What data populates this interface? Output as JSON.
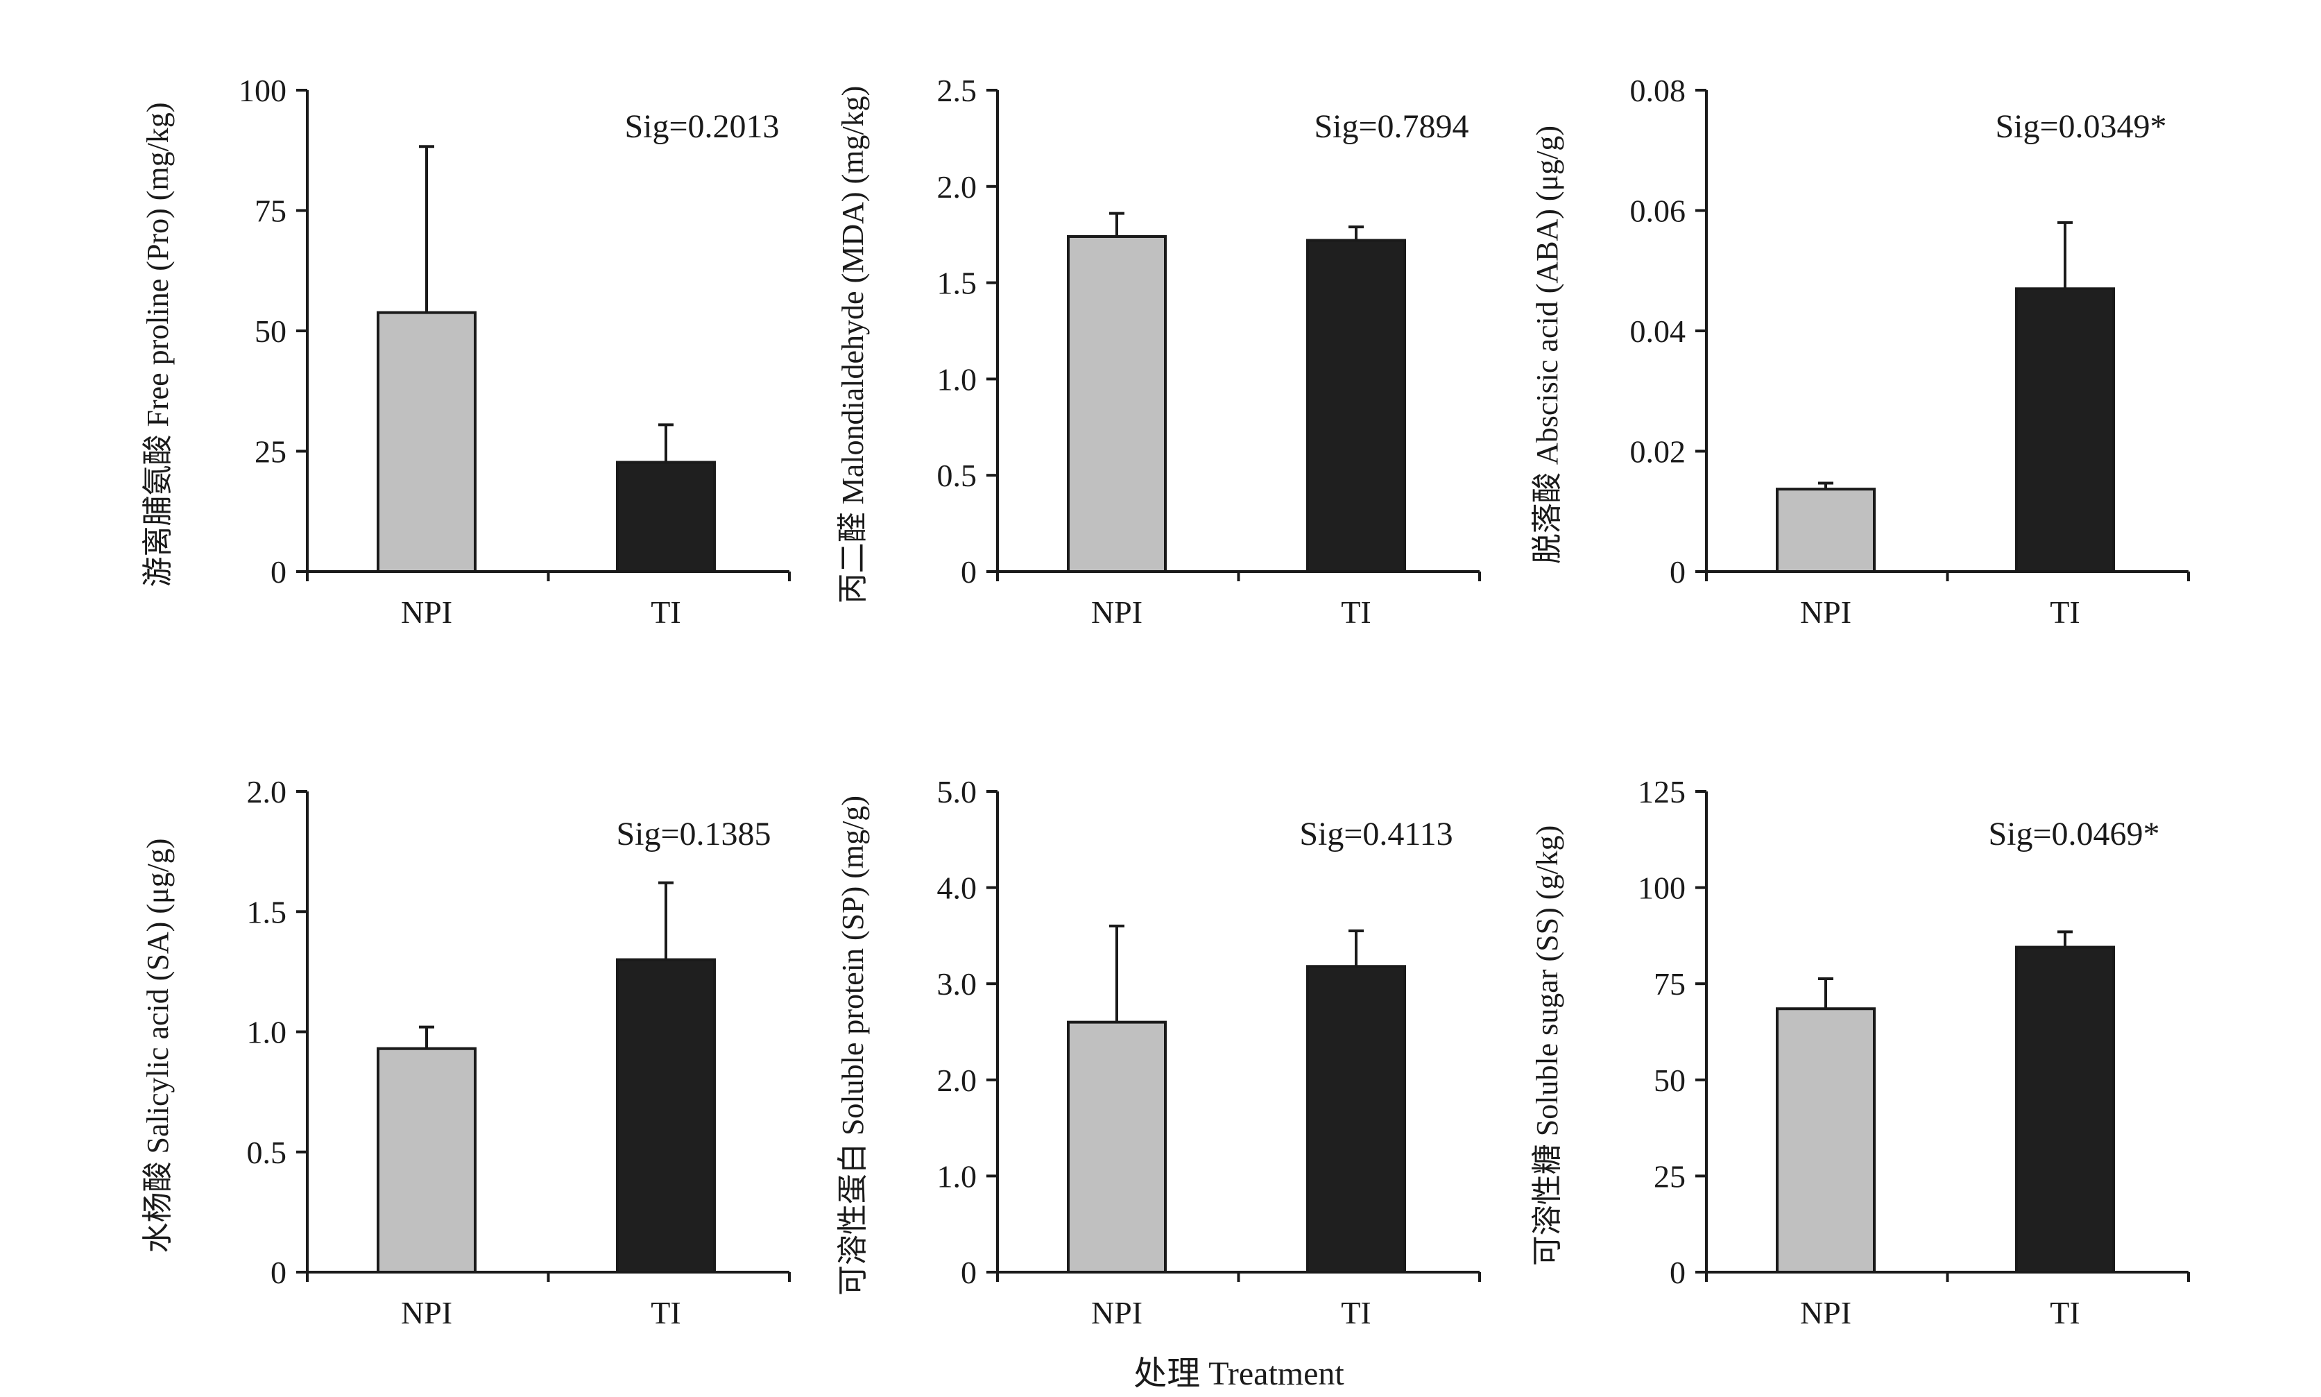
{
  "figure": {
    "x_title": "处理 Treatment"
  },
  "chart_data": [
    {
      "type": "bar",
      "categories": [
        "NPI",
        "TI"
      ],
      "values": [
        53.8,
        22.7
      ],
      "errors": [
        34.5,
        7.8
      ],
      "ylim": [
        0,
        100
      ],
      "yticks": [
        0,
        25,
        50,
        75,
        100
      ],
      "ytick_labels": [
        "0",
        "25",
        "50",
        "75",
        "100"
      ],
      "ylabel": "游离脯氨酸 Free proline (Pro) (mg/kg)",
      "annotation": "Sig=0.2013",
      "colors": [
        "#c0c0c0",
        "#1f1f1f"
      ]
    },
    {
      "type": "bar",
      "categories": [
        "NPI",
        "TI"
      ],
      "values": [
        1.74,
        1.72
      ],
      "errors": [
        0.12,
        0.07
      ],
      "ylim": [
        0,
        2.5
      ],
      "yticks": [
        0,
        0.5,
        1.0,
        1.5,
        2.0,
        2.5
      ],
      "ytick_labels": [
        "0",
        "0.5",
        "1.0",
        "1.5",
        "2.0",
        "2.5"
      ],
      "ylabel": "丙二醛 Malondialdehyde (MDA) (mg/kg)",
      "annotation": "Sig=0.7894",
      "colors": [
        "#c0c0c0",
        "#1f1f1f"
      ]
    },
    {
      "type": "bar",
      "categories": [
        "NPI",
        "TI"
      ],
      "values": [
        0.0137,
        0.047
      ],
      "errors": [
        0.001,
        0.011
      ],
      "ylim": [
        0,
        0.08
      ],
      "yticks": [
        0,
        0.02,
        0.04,
        0.06,
        0.08
      ],
      "ytick_labels": [
        "0",
        "0.02",
        "0.04",
        "0.06",
        "0.08"
      ],
      "ylabel": "脱落酸 Abscisic acid (ABA) (μg/g)",
      "annotation": "Sig=0.0349*",
      "colors": [
        "#c0c0c0",
        "#1f1f1f"
      ]
    },
    {
      "type": "bar",
      "categories": [
        "NPI",
        "TI"
      ],
      "values": [
        0.93,
        1.3
      ],
      "errors": [
        0.09,
        0.32
      ],
      "ylim": [
        0,
        2.0
      ],
      "yticks": [
        0,
        0.5,
        1.0,
        1.5,
        2.0
      ],
      "ytick_labels": [
        "0",
        "0.5",
        "1.0",
        "1.5",
        "2.0"
      ],
      "ylabel": "水杨酸 Salicylic acid (SA) (μg/g)",
      "annotation": "Sig=0.1385",
      "colors": [
        "#c0c0c0",
        "#1f1f1f"
      ]
    },
    {
      "type": "bar",
      "categories": [
        "NPI",
        "TI"
      ],
      "values": [
        2.6,
        3.18
      ],
      "errors": [
        1.0,
        0.37
      ],
      "ylim": [
        0,
        5.0
      ],
      "yticks": [
        0,
        1.0,
        2.0,
        3.0,
        4.0,
        5.0
      ],
      "ytick_labels": [
        "0",
        "1.0",
        "2.0",
        "3.0",
        "4.0",
        "5.0"
      ],
      "ylabel": "可溶性蛋白 Soluble protein (SP) (mg/g)",
      "annotation": "Sig=0.4113",
      "colors": [
        "#c0c0c0",
        "#1f1f1f"
      ]
    },
    {
      "type": "bar",
      "categories": [
        "NPI",
        "TI"
      ],
      "values": [
        68.5,
        84.5
      ],
      "errors": [
        7.8,
        4.0
      ],
      "ylim": [
        0,
        125
      ],
      "yticks": [
        0,
        25,
        50,
        75,
        100,
        125
      ],
      "ytick_labels": [
        "0",
        "25",
        "50",
        "75",
        "100",
        "125"
      ],
      "ylabel": "可溶性糖 Soluble sugar (SS) (g/kg)",
      "annotation": "Sig=0.0469*",
      "colors": [
        "#c0c0c0",
        "#1f1f1f"
      ]
    }
  ]
}
